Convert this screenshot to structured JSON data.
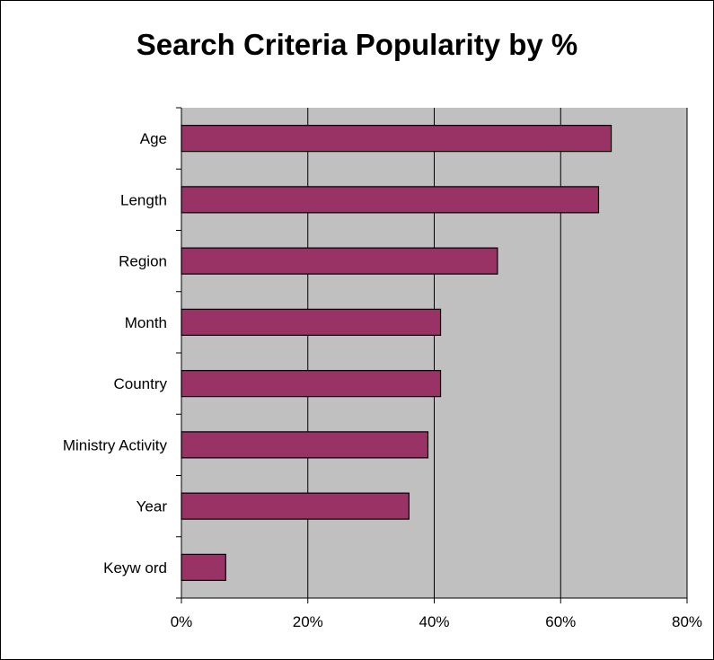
{
  "chart_data": {
    "type": "bar",
    "orientation": "horizontal",
    "title": "Search Criteria Popularity by %",
    "categories": [
      "Age",
      "Length",
      "Region",
      "Month",
      "Country",
      "Ministry Activity",
      "Year",
      "Keyw ord"
    ],
    "values": [
      68,
      66,
      50,
      41,
      41,
      39,
      36,
      7
    ],
    "xlim": [
      0,
      80
    ],
    "xticks": [
      "0%",
      "20%",
      "40%",
      "60%",
      "80%"
    ],
    "grid": true,
    "colors": {
      "bar": "#993366",
      "plot_background": "#c0c0c0",
      "gridline": "#000000"
    }
  }
}
